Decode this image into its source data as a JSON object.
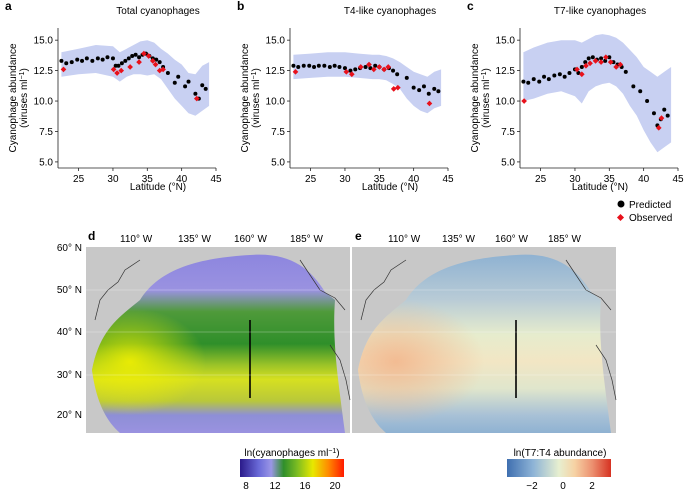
{
  "chart_data": [
    {
      "panel": "a",
      "type": "scatter",
      "title": "Total cyanophages",
      "xlabel": "Latitude (°N)",
      "ylabel": "Cyanophage abundance",
      "ylabel_units": "(viruses ml",
      "xlim": [
        22,
        45
      ],
      "ylim": [
        4.5,
        16
      ],
      "xticks": [
        "25",
        "30",
        "35",
        "40",
        "45"
      ],
      "yticks": [
        "5.0",
        "7.5",
        "10.0",
        "12.5",
        "15.0"
      ],
      "band": {
        "x": [
          22.5,
          25,
          27.5,
          30,
          31,
          32,
          33,
          34,
          35,
          36,
          37,
          38,
          39,
          40,
          41,
          42,
          43,
          44
        ],
        "lo": [
          12.0,
          12.2,
          12.3,
          12.0,
          11.6,
          12.0,
          12.2,
          12.2,
          12.1,
          12.2,
          11.8,
          11.0,
          10.2,
          9.6,
          9.0,
          8.8,
          9.2,
          9.6
        ],
        "hi": [
          14.0,
          14.3,
          14.6,
          14.5,
          14.0,
          14.3,
          14.6,
          14.9,
          15.0,
          14.8,
          14.3,
          13.9,
          13.4,
          13.0,
          12.3,
          12.2,
          12.9,
          13.2
        ]
      },
      "predicted": {
        "x": [
          22.5,
          23.2,
          24,
          24.8,
          25.5,
          26.2,
          27,
          27.8,
          28.5,
          29.2,
          30,
          30.4,
          30.8,
          31.3,
          31.8,
          32.3,
          32.8,
          33.3,
          33.8,
          34.3,
          34.8,
          35.3,
          35.8,
          36.3,
          36.8,
          37.3,
          38,
          39,
          39.5,
          40.5,
          41,
          42,
          42.5,
          43,
          43.5
        ],
        "y": [
          13.3,
          13.1,
          13.2,
          13.4,
          13.3,
          13.5,
          13.3,
          13.5,
          13.4,
          13.6,
          13.5,
          12.9,
          12.9,
          13.1,
          13.3,
          13.5,
          13.7,
          13.8,
          13.6,
          13.8,
          13.9,
          13.7,
          13.5,
          13.4,
          13.2,
          12.8,
          12.3,
          11.5,
          12.0,
          11.2,
          11.6,
          10.6,
          10.2,
          11.3,
          11.0
        ]
      },
      "observed": {
        "x": [
          22.8,
          30.1,
          30.6,
          31.2,
          32.5,
          33.8,
          34.5,
          35.2,
          35.8,
          36.2,
          36.8,
          37.3,
          42.2
        ],
        "y": [
          12.6,
          12.6,
          12.3,
          12.5,
          12.8,
          13.2,
          13.9,
          13.7,
          13.3,
          13.0,
          12.5,
          12.6,
          10.2
        ]
      }
    },
    {
      "panel": "b",
      "type": "scatter",
      "title": "T4-like cyanophages",
      "xlabel": "Latitude (°N)",
      "ylabel": "Cyanophage abundance",
      "ylabel_units": "(viruses ml",
      "xlim": [
        22,
        45
      ],
      "ylim": [
        4.5,
        16
      ],
      "xticks": [
        "25",
        "30",
        "35",
        "40",
        "45"
      ],
      "yticks": [
        "5.0",
        "7.5",
        "10.0",
        "12.5",
        "15.0"
      ],
      "band": {
        "x": [
          22.5,
          25,
          27.5,
          30,
          32,
          34,
          35,
          36,
          37,
          38,
          39,
          40,
          41,
          42,
          43,
          44
        ],
        "lo": [
          11.8,
          11.9,
          12.0,
          12.0,
          11.9,
          11.8,
          11.8,
          11.7,
          11.4,
          11.0,
          10.2,
          9.6,
          9.2,
          9.0,
          9.4,
          9.6
        ],
        "hi": [
          13.8,
          13.9,
          14.0,
          14.0,
          13.9,
          13.8,
          13.8,
          13.7,
          13.5,
          13.2,
          12.8,
          12.4,
          12.2,
          12.0,
          12.4,
          12.6
        ]
      },
      "predicted": {
        "x": [
          22.5,
          23.2,
          24,
          24.8,
          25.5,
          26.2,
          27,
          27.8,
          28.5,
          29.2,
          30,
          30.8,
          31.5,
          32.2,
          33,
          33.7,
          34.4,
          35,
          35.7,
          36.4,
          37,
          37.6,
          39,
          40,
          40.8,
          41.5,
          42.2,
          43,
          43.6
        ],
        "y": [
          12.9,
          12.8,
          12.9,
          12.9,
          12.8,
          12.9,
          12.9,
          12.8,
          12.9,
          12.8,
          12.7,
          12.5,
          12.6,
          12.7,
          12.8,
          12.7,
          12.9,
          12.8,
          12.6,
          12.7,
          12.5,
          12.2,
          11.9,
          11.1,
          10.9,
          11.2,
          10.6,
          11.0,
          10.8
        ]
      },
      "observed": {
        "x": [
          22.8,
          30.2,
          31.0,
          32.3,
          33.5,
          34.2,
          35.0,
          35.7,
          36.3,
          37.1,
          37.7,
          42.3
        ],
        "y": [
          12.4,
          12.4,
          12.2,
          12.8,
          13.0,
          12.6,
          12.8,
          12.6,
          12.8,
          11.0,
          11.1,
          9.8
        ]
      }
    },
    {
      "panel": "c",
      "type": "scatter",
      "title": "T7-like cyanophages",
      "xlabel": "Latitude (°N)",
      "ylabel": "Cyanophage abundance",
      "ylabel_units": "(viruses ml",
      "xlim": [
        22,
        45
      ],
      "ylim": [
        4.5,
        16
      ],
      "xticks": [
        "25",
        "30",
        "35",
        "40",
        "45"
      ],
      "yticks": [
        "5.0",
        "7.5",
        "10.0",
        "12.5",
        "15.0"
      ],
      "band": {
        "x": [
          22.5,
          24,
          26,
          28,
          30,
          31,
          32,
          33,
          34,
          35,
          36,
          37,
          38,
          39,
          40,
          41,
          42,
          43,
          44
        ],
        "lo": [
          10.0,
          10.2,
          10.6,
          10.8,
          10.4,
          9.8,
          10.8,
          11.2,
          11.4,
          11.5,
          11.2,
          10.6,
          9.6,
          8.8,
          7.6,
          6.6,
          5.8,
          6.2,
          6.6
        ],
        "hi": [
          14.0,
          14.4,
          14.8,
          15.0,
          15.0,
          14.8,
          15.1,
          15.4,
          15.5,
          15.4,
          15.2,
          14.8,
          14.2,
          13.6,
          12.8,
          12.4,
          12.0,
          12.4,
          12.8
        ]
      },
      "predicted": {
        "x": [
          22.5,
          23.2,
          24,
          24.8,
          25.5,
          26.2,
          27,
          27.8,
          28.5,
          29.2,
          30,
          30.5,
          31,
          31.5,
          32,
          32.6,
          33.2,
          33.8,
          34.4,
          35,
          35.6,
          36.2,
          36.8,
          37.4,
          38.5,
          39.5,
          40.5,
          41.5,
          42,
          42.5,
          43,
          43.5
        ],
        "y": [
          11.6,
          11.5,
          11.8,
          11.6,
          12.0,
          11.8,
          12.1,
          12.2,
          12.0,
          12.3,
          12.6,
          12.3,
          12.8,
          13.2,
          13.5,
          13.6,
          13.4,
          13.5,
          13.3,
          13.6,
          13.2,
          13.0,
          12.8,
          12.4,
          11.2,
          10.8,
          10.0,
          9.0,
          8.0,
          8.5,
          9.3,
          8.8
        ]
      },
      "observed": {
        "x": [
          22.6,
          30.3,
          31.0,
          31.6,
          32.2,
          33.0,
          33.8,
          34.5,
          35.2,
          36.0,
          36.6,
          42.2,
          42.6
        ],
        "y": [
          10.0,
          12.6,
          12.2,
          12.9,
          13.1,
          13.3,
          13.2,
          13.6,
          13.2,
          12.8,
          13.0,
          7.8,
          8.6
        ]
      }
    }
  ],
  "panels": {
    "a_label": "a",
    "b_label": "b",
    "c_label": "c",
    "d_label": "d",
    "e_label": "e",
    "unit_sup": "−1",
    "unit_close": ")"
  },
  "legend": {
    "predicted": "Predicted",
    "observed": "Observed",
    "colors": {
      "predicted": "#000000",
      "observed": "#e8111b",
      "band": "#c8d0f2"
    }
  },
  "maps": {
    "lon_labels": [
      "110° W",
      "135° W",
      "160° W",
      "185° W"
    ],
    "lat_labels": [
      "60° N",
      "50° N",
      "40° N",
      "30° N",
      "20° N"
    ],
    "colorbar_d": {
      "label": "ln(cyanophages ml",
      "label_sup": "−1",
      "label_close": ")",
      "ticks": [
        "8",
        "12",
        "16",
        "20"
      ],
      "colors": [
        "#2a1a8a",
        "#6a6ad8",
        "#9a96e6",
        "#2f8f2a",
        "#7cbc22",
        "#e8e800",
        "#ff8a00",
        "#ff1a00"
      ]
    },
    "colorbar_e": {
      "label": "ln(T7:T4 abundance)",
      "ticks": [
        "−2",
        "0",
        "2"
      ],
      "colors": [
        "#3f6fb0",
        "#8db3d6",
        "#e7efd0",
        "#f6d2a4",
        "#ec9070",
        "#d63222"
      ]
    },
    "land_color": "#c8c8c8"
  }
}
